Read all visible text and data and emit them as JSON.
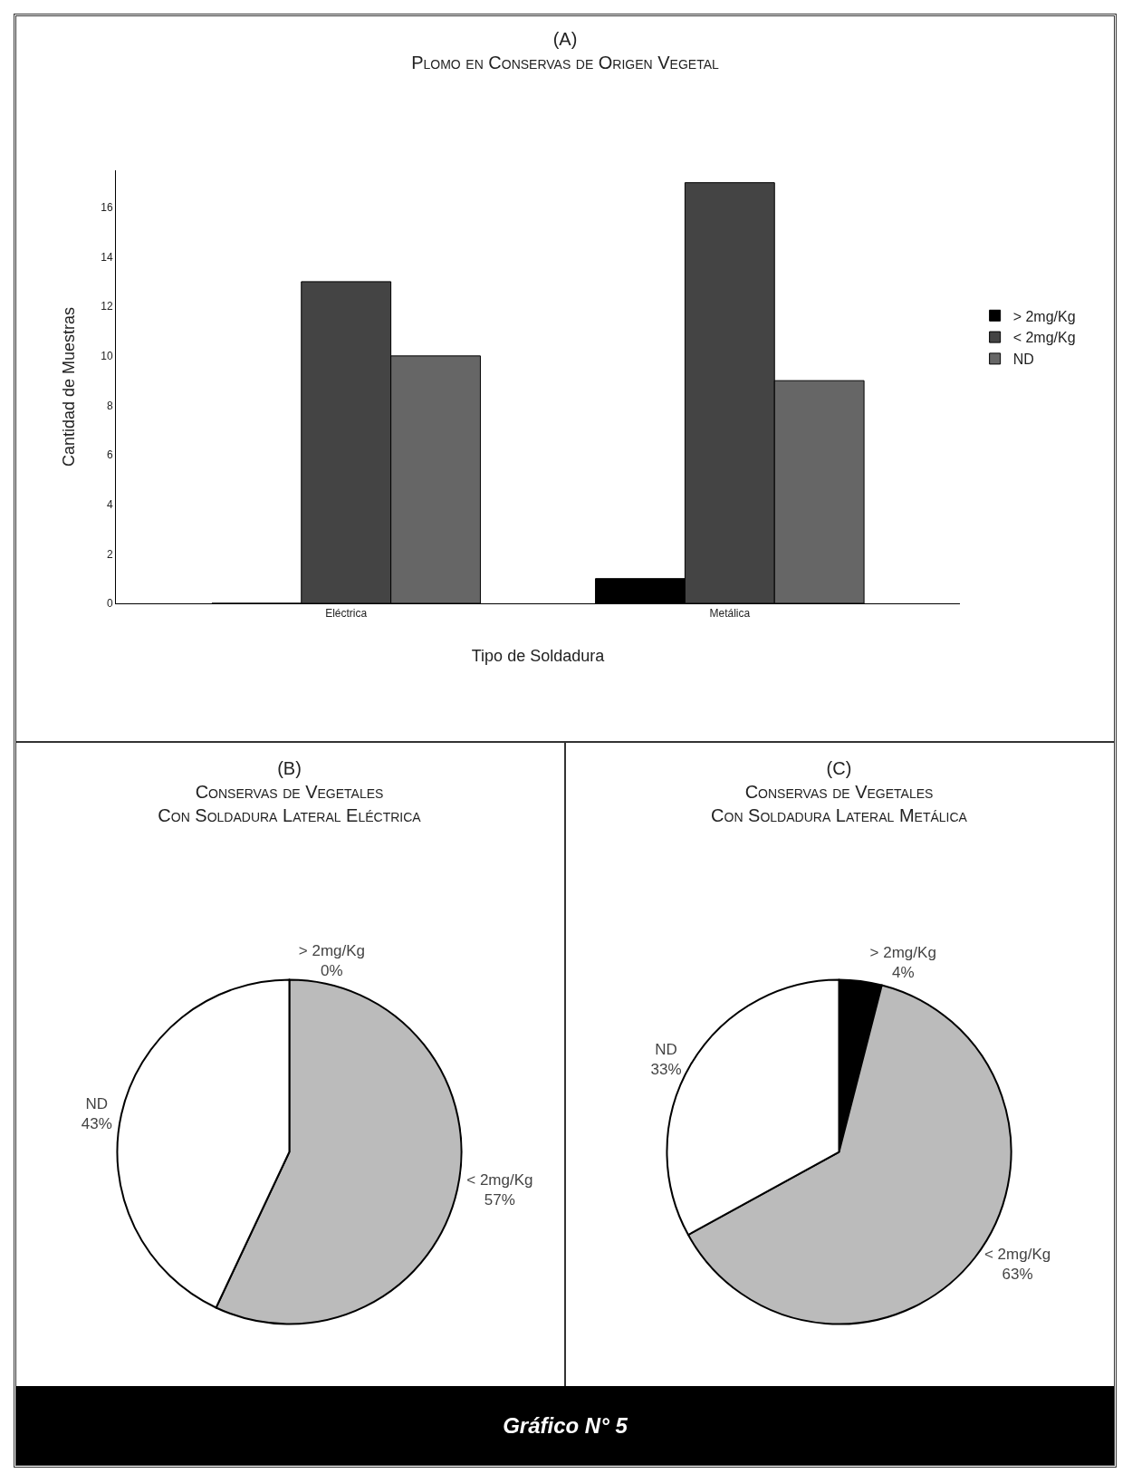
{
  "chart_data": [
    {
      "type": "bar",
      "title": "(A)",
      "subtitle": "Plomo en Conservas de Origen Vegetal",
      "xlabel": "Tipo de Soldadura",
      "ylabel": "Cantidad de Muestras",
      "categories": [
        "Eléctrica",
        "Metálica"
      ],
      "series": [
        {
          "name": "> 2mg/Kg",
          "color": "#000000",
          "values": [
            0,
            1
          ]
        },
        {
          "name": "< 2mg/Kg",
          "color": "#444444",
          "values": [
            13,
            17
          ]
        },
        {
          "name": "ND",
          "color": "#666666",
          "values": [
            10,
            9
          ]
        }
      ],
      "ylim": [
        0,
        17.5
      ],
      "yticks": [
        0,
        2,
        4,
        6,
        8,
        10,
        12,
        14,
        16
      ],
      "grid": false,
      "legend": "right"
    },
    {
      "type": "pie",
      "title": "(B)",
      "subtitle": "Conservas de Vegetales\nCon Soldadura Lateral Eléctrica",
      "categories": [
        "> 2mg/Kg",
        "< 2mg/Kg",
        "ND"
      ],
      "values": [
        0,
        57,
        43
      ],
      "value_labels": [
        "0%",
        "57%",
        "43%"
      ],
      "colors": [
        "#000000",
        "#bbbbbb",
        "#ffffff"
      ],
      "legend": false
    },
    {
      "type": "pie",
      "title": "(C)",
      "subtitle": "Conservas de Vegetales\nCon Soldadura Lateral Metálica",
      "categories": [
        "> 2mg/Kg",
        "< 2mg/Kg",
        "ND"
      ],
      "values": [
        4,
        63,
        33
      ],
      "value_labels": [
        "4%",
        "63%",
        "33%"
      ],
      "colors": [
        "#000000",
        "#bbbbbb",
        "#ffffff"
      ],
      "legend": false
    },
    {
      "type": "other",
      "annotations": [
        "Gráfico N° 5"
      ]
    }
  ]
}
